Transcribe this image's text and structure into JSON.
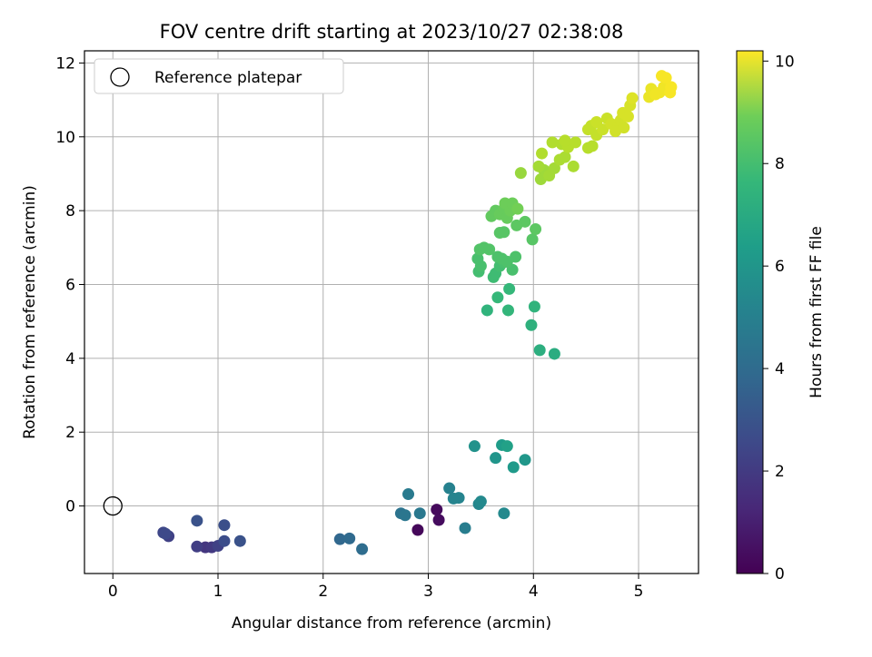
{
  "chart_data": {
    "type": "scatter",
    "title": "FOV centre drift starting at 2023/10/27 02:38:08",
    "xlabel": "Angular distance from reference (arcmin)",
    "ylabel": "Rotation from reference (arcmin)",
    "xlim": [
      -0.27,
      5.57
    ],
    "ylim": [
      -1.83,
      12.33
    ],
    "xticks": [
      0,
      1,
      2,
      3,
      4,
      5
    ],
    "yticks": [
      0,
      2,
      4,
      6,
      8,
      10,
      12
    ],
    "grid": true,
    "legend": {
      "position": "top-left",
      "entries": [
        "Reference platepar"
      ]
    },
    "reference": {
      "x": 0,
      "y": 0
    },
    "colorbar": {
      "label": "Hours from first FF file",
      "min": 0,
      "max": 10.2,
      "ticks": [
        0,
        2,
        4,
        6,
        8,
        10
      ],
      "colormap": "viridis"
    },
    "points": [
      {
        "x": 2.9,
        "y": -0.65,
        "c": 0.2
      },
      {
        "x": 3.08,
        "y": -0.1,
        "c": 0.25
      },
      {
        "x": 3.1,
        "y": -0.38,
        "c": 0.3
      },
      {
        "x": 0.88,
        "y": -1.12,
        "c": 1.6
      },
      {
        "x": 0.94,
        "y": -1.12,
        "c": 1.7
      },
      {
        "x": 0.8,
        "y": -1.1,
        "c": 1.9
      },
      {
        "x": 1.0,
        "y": -1.08,
        "c": 2.0
      },
      {
        "x": 0.53,
        "y": -0.82,
        "c": 2.0
      },
      {
        "x": 0.48,
        "y": -0.72,
        "c": 2.2
      },
      {
        "x": 0.5,
        "y": -0.75,
        "c": 2.3
      },
      {
        "x": 1.06,
        "y": -0.95,
        "c": 2.4
      },
      {
        "x": 1.06,
        "y": -0.52,
        "c": 2.5
      },
      {
        "x": 0.8,
        "y": -0.4,
        "c": 2.6
      },
      {
        "x": 1.21,
        "y": -0.95,
        "c": 2.6
      },
      {
        "x": 2.16,
        "y": -0.9,
        "c": 3.4
      },
      {
        "x": 2.25,
        "y": -0.88,
        "c": 3.5
      },
      {
        "x": 2.37,
        "y": -1.17,
        "c": 3.6
      },
      {
        "x": 2.74,
        "y": -0.2,
        "c": 3.9
      },
      {
        "x": 2.78,
        "y": -0.25,
        "c": 4.0
      },
      {
        "x": 2.92,
        "y": -0.2,
        "c": 4.1
      },
      {
        "x": 2.81,
        "y": 0.32,
        "c": 4.2
      },
      {
        "x": 3.35,
        "y": -0.6,
        "c": 4.3
      },
      {
        "x": 3.2,
        "y": 0.48,
        "c": 4.5
      },
      {
        "x": 3.24,
        "y": 0.2,
        "c": 4.6
      },
      {
        "x": 3.29,
        "y": 0.22,
        "c": 4.6
      },
      {
        "x": 3.48,
        "y": 0.05,
        "c": 4.7
      },
      {
        "x": 3.5,
        "y": 0.12,
        "c": 4.8
      },
      {
        "x": 3.72,
        "y": -0.2,
        "c": 4.8
      },
      {
        "x": 3.44,
        "y": 1.62,
        "c": 5.2
      },
      {
        "x": 3.64,
        "y": 1.3,
        "c": 5.3
      },
      {
        "x": 3.92,
        "y": 1.25,
        "c": 5.4
      },
      {
        "x": 3.81,
        "y": 1.05,
        "c": 5.5
      },
      {
        "x": 3.7,
        "y": 1.65,
        "c": 5.6
      },
      {
        "x": 3.75,
        "y": 1.62,
        "c": 5.8
      },
      {
        "x": 4.2,
        "y": 4.12,
        "c": 6.3
      },
      {
        "x": 4.06,
        "y": 4.22,
        "c": 6.4
      },
      {
        "x": 3.98,
        "y": 4.9,
        "c": 6.5
      },
      {
        "x": 4.01,
        "y": 5.4,
        "c": 6.6
      },
      {
        "x": 3.56,
        "y": 5.3,
        "c": 6.6
      },
      {
        "x": 3.76,
        "y": 5.3,
        "c": 6.7
      },
      {
        "x": 3.66,
        "y": 5.65,
        "c": 6.8
      },
      {
        "x": 3.77,
        "y": 5.88,
        "c": 6.8
      },
      {
        "x": 3.62,
        "y": 6.2,
        "c": 7.0
      },
      {
        "x": 3.64,
        "y": 6.3,
        "c": 7.0
      },
      {
        "x": 3.68,
        "y": 6.5,
        "c": 7.1
      },
      {
        "x": 3.48,
        "y": 6.35,
        "c": 7.1
      },
      {
        "x": 3.5,
        "y": 6.5,
        "c": 7.2
      },
      {
        "x": 3.47,
        "y": 6.7,
        "c": 7.2
      },
      {
        "x": 3.72,
        "y": 6.6,
        "c": 7.2
      },
      {
        "x": 3.8,
        "y": 6.4,
        "c": 7.2
      },
      {
        "x": 3.83,
        "y": 6.75,
        "c": 7.3
      },
      {
        "x": 3.7,
        "y": 6.7,
        "c": 7.3
      },
      {
        "x": 3.66,
        "y": 6.75,
        "c": 7.3
      },
      {
        "x": 3.75,
        "y": 6.62,
        "c": 7.3
      },
      {
        "x": 3.49,
        "y": 6.95,
        "c": 7.4
      },
      {
        "x": 3.53,
        "y": 7.0,
        "c": 7.4
      },
      {
        "x": 3.58,
        "y": 6.95,
        "c": 7.4
      },
      {
        "x": 3.68,
        "y": 7.4,
        "c": 7.5
      },
      {
        "x": 3.72,
        "y": 7.42,
        "c": 7.5
      },
      {
        "x": 3.99,
        "y": 7.22,
        "c": 7.5
      },
      {
        "x": 4.02,
        "y": 7.5,
        "c": 7.6
      },
      {
        "x": 3.92,
        "y": 7.7,
        "c": 7.6
      },
      {
        "x": 3.84,
        "y": 7.6,
        "c": 7.6
      },
      {
        "x": 3.6,
        "y": 7.85,
        "c": 7.7
      },
      {
        "x": 3.64,
        "y": 8.0,
        "c": 7.7
      },
      {
        "x": 3.68,
        "y": 7.9,
        "c": 7.8
      },
      {
        "x": 3.72,
        "y": 8.05,
        "c": 7.8
      },
      {
        "x": 3.75,
        "y": 7.8,
        "c": 7.8
      },
      {
        "x": 3.78,
        "y": 8.0,
        "c": 7.9
      },
      {
        "x": 3.73,
        "y": 8.2,
        "c": 7.9
      },
      {
        "x": 3.8,
        "y": 8.2,
        "c": 7.9
      },
      {
        "x": 3.85,
        "y": 8.05,
        "c": 8.0
      },
      {
        "x": 3.88,
        "y": 9.02,
        "c": 8.6
      },
      {
        "x": 4.07,
        "y": 8.85,
        "c": 8.7
      },
      {
        "x": 4.1,
        "y": 9.1,
        "c": 8.7
      },
      {
        "x": 4.15,
        "y": 8.95,
        "c": 8.8
      },
      {
        "x": 4.05,
        "y": 9.2,
        "c": 8.8
      },
      {
        "x": 4.2,
        "y": 9.15,
        "c": 8.8
      },
      {
        "x": 4.38,
        "y": 9.2,
        "c": 8.9
      },
      {
        "x": 4.25,
        "y": 9.38,
        "c": 8.9
      },
      {
        "x": 4.3,
        "y": 9.45,
        "c": 8.9
      },
      {
        "x": 4.08,
        "y": 9.55,
        "c": 9.0
      },
      {
        "x": 4.18,
        "y": 9.85,
        "c": 9.0
      },
      {
        "x": 4.27,
        "y": 9.8,
        "c": 9.0
      },
      {
        "x": 4.33,
        "y": 9.72,
        "c": 9.1
      },
      {
        "x": 4.3,
        "y": 9.9,
        "c": 9.1
      },
      {
        "x": 4.4,
        "y": 9.85,
        "c": 9.1
      },
      {
        "x": 4.52,
        "y": 9.7,
        "c": 9.1
      },
      {
        "x": 4.56,
        "y": 9.75,
        "c": 9.1
      },
      {
        "x": 4.6,
        "y": 10.05,
        "c": 9.3
      },
      {
        "x": 4.52,
        "y": 10.2,
        "c": 9.3
      },
      {
        "x": 4.55,
        "y": 10.3,
        "c": 9.3
      },
      {
        "x": 4.6,
        "y": 10.4,
        "c": 9.4
      },
      {
        "x": 4.66,
        "y": 10.2,
        "c": 9.4
      },
      {
        "x": 4.7,
        "y": 10.5,
        "c": 9.4
      },
      {
        "x": 4.74,
        "y": 10.35,
        "c": 9.5
      },
      {
        "x": 4.8,
        "y": 10.25,
        "c": 9.5
      },
      {
        "x": 4.83,
        "y": 10.45,
        "c": 9.5
      },
      {
        "x": 4.88,
        "y": 10.6,
        "c": 9.6
      },
      {
        "x": 4.92,
        "y": 10.85,
        "c": 9.6
      },
      {
        "x": 4.94,
        "y": 11.05,
        "c": 9.7
      },
      {
        "x": 4.85,
        "y": 10.65,
        "c": 9.6
      },
      {
        "x": 4.9,
        "y": 10.55,
        "c": 9.6
      },
      {
        "x": 4.78,
        "y": 10.15,
        "c": 9.5
      },
      {
        "x": 4.86,
        "y": 10.25,
        "c": 9.5
      },
      {
        "x": 5.1,
        "y": 11.08,
        "c": 9.9
      },
      {
        "x": 5.12,
        "y": 11.3,
        "c": 9.9
      },
      {
        "x": 5.16,
        "y": 11.15,
        "c": 10.0
      },
      {
        "x": 5.2,
        "y": 11.2,
        "c": 10.0
      },
      {
        "x": 5.24,
        "y": 11.35,
        "c": 10.0
      },
      {
        "x": 5.22,
        "y": 11.65,
        "c": 10.1
      },
      {
        "x": 5.26,
        "y": 11.6,
        "c": 10.1
      },
      {
        "x": 5.3,
        "y": 11.2,
        "c": 10.1
      },
      {
        "x": 5.31,
        "y": 11.35,
        "c": 10.1
      }
    ]
  }
}
